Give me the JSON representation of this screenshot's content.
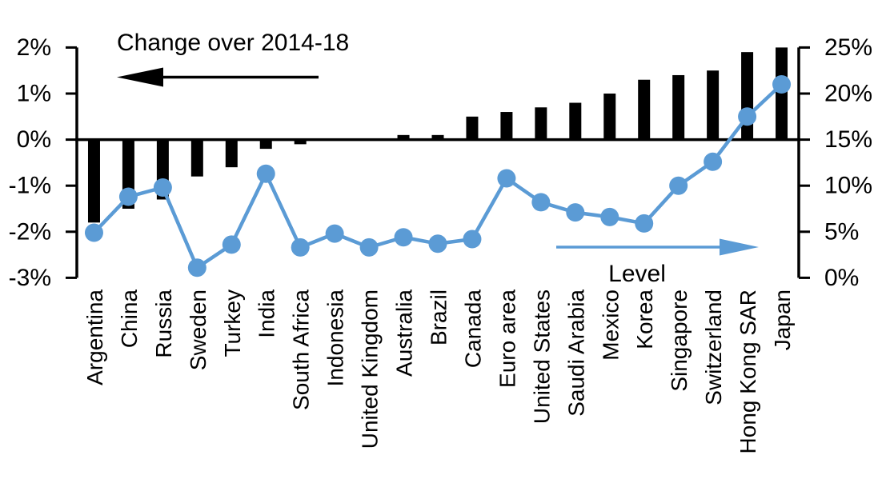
{
  "chart_data": {
    "type": "bar",
    "subtype": "combo-bar-line-dual-axis",
    "categories": [
      "Argentina",
      "China",
      "Russia",
      "Sweden",
      "Turkey",
      "India",
      "South Africa",
      "Indonesia",
      "United Kingdom",
      "Australia",
      "Brazil",
      "Canada",
      "Euro area",
      "United States",
      "Saudi Arabia",
      "Mexico",
      "Korea",
      "Singapore",
      "Switzerland",
      "Hong Kong SAR",
      "Japan"
    ],
    "series": [
      {
        "name": "Change over 2014-18",
        "type": "bar",
        "axis": "left",
        "color": "#000000",
        "values": [
          -1.8,
          -1.5,
          -1.3,
          -0.8,
          -0.6,
          -0.2,
          -0.1,
          0,
          0,
          0.1,
          0.1,
          0.5,
          0.6,
          0.7,
          0.8,
          1.0,
          1.3,
          1.4,
          1.5,
          1.9,
          2.0
        ]
      },
      {
        "name": "Level",
        "type": "line",
        "axis": "right",
        "color": "#5B9BD5",
        "values": [
          4.9,
          8.8,
          9.8,
          1.1,
          3.6,
          11.3,
          3.3,
          4.8,
          3.3,
          4.4,
          3.7,
          4.2,
          10.8,
          8.2,
          7.1,
          6.6,
          5.9,
          10.0,
          12.6,
          17.5,
          21.0
        ]
      }
    ],
    "left_axis": {
      "tick_labels": [
        "2%",
        "1%",
        "0%",
        "-1%",
        "-2%",
        "-3%"
      ],
      "tick_values": [
        2,
        1,
        0,
        -1,
        -2,
        -3
      ],
      "min": -3,
      "max": 2
    },
    "right_axis": {
      "tick_labels": [
        "25%",
        "20%",
        "15%",
        "10%",
        "5%",
        "0%"
      ],
      "tick_values": [
        25,
        20,
        15,
        10,
        5,
        0
      ],
      "min": 0,
      "max": 25
    },
    "annotations": {
      "bar_label": "Change over 2014-18",
      "line_label": "Level"
    },
    "layout_hints": {
      "grid": "off",
      "zero_line": true,
      "category_labels_rotated_90": true
    }
  }
}
